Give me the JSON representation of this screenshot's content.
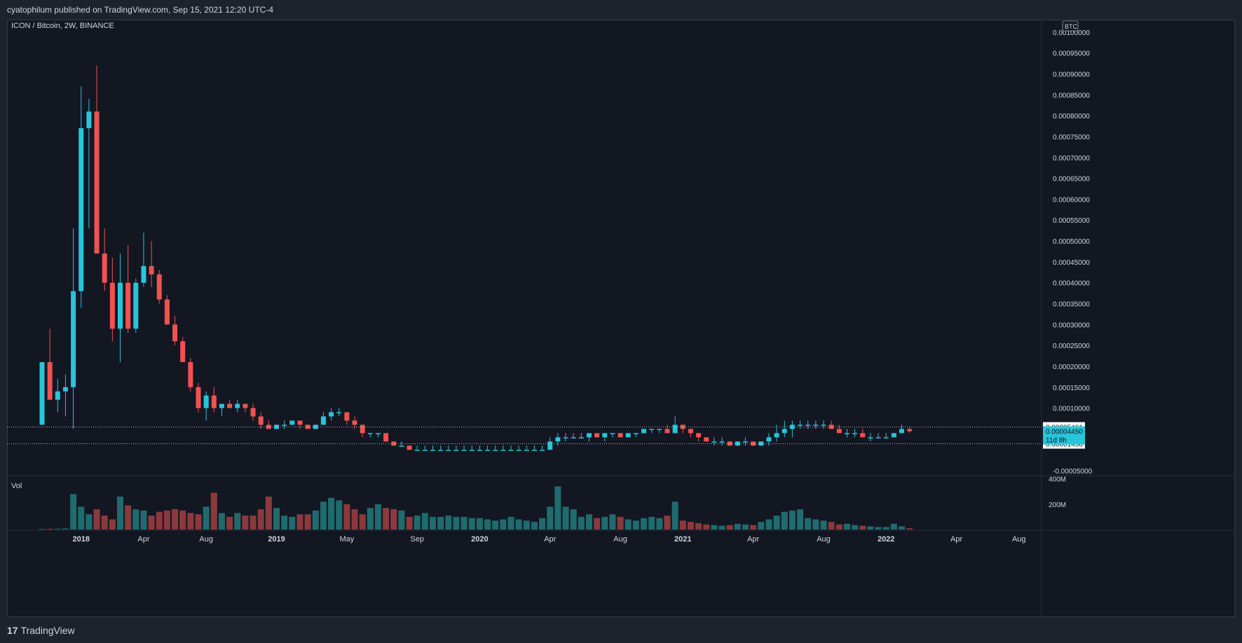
{
  "header": {
    "publisher_line": "cyatophilum published on TradingView.com, Sep 15, 2021 12:20 UTC-4"
  },
  "footer": {
    "brand": "TradingView",
    "logo_glyph": "17"
  },
  "colors": {
    "up": "#26c6da",
    "down": "#ef5350",
    "up_vol": "#1f6b6e",
    "down_vol": "#8a3a3d",
    "background": "#131722",
    "frame": "#1e222d",
    "text": "#d1d4dc"
  },
  "chart_data": {
    "type": "candlestick",
    "title": "ICON / Bitcoin, 2W, BINANCE",
    "symbol": "ICON / Bitcoin",
    "interval": "2W",
    "exchange": "BINANCE",
    "currency_badge": "BTC",
    "price_axis": {
      "ylim": [
        -6e-05,
        0.00103
      ],
      "tick_labels": [
        "0.00100000",
        "0.00095000",
        "0.00090000",
        "0.00085000",
        "0.00080000",
        "0.00075000",
        "0.00070000",
        "0.00065000",
        "0.00060000",
        "0.00055000",
        "0.00050000",
        "0.00045000",
        "0.00040000",
        "0.00035000",
        "0.00030000",
        "0.00025000",
        "0.00020000",
        "0.00015000",
        "0.00010000",
        "-0.00005000"
      ],
      "tick_values": [
        0.001,
        0.00095,
        0.0009,
        0.00085,
        0.0008,
        0.00075,
        0.0007,
        0.00065,
        0.0006,
        0.00055,
        0.0005,
        0.00045,
        0.0004,
        0.00035,
        0.0003,
        0.00025,
        0.0002,
        0.00015,
        0.0001,
        -5e-05
      ]
    },
    "volume_axis": {
      "ylim": [
        0,
        420000000
      ],
      "tick_labels": [
        "400M",
        "200M"
      ],
      "tick_values": [
        400000000,
        200000000
      ]
    },
    "volume_label": "Vol",
    "time_axis": {
      "labels": [
        "2018",
        "Apr",
        "Aug",
        "2019",
        "May",
        "Sep",
        "2020",
        "Apr",
        "Aug",
        "2021",
        "Apr",
        "Aug",
        "2022",
        "Apr",
        "Aug"
      ],
      "label_bar_index": [
        5,
        13,
        21,
        30,
        39,
        48,
        56,
        65,
        74,
        82,
        91,
        100,
        108,
        117,
        125
      ]
    },
    "price_lines": [
      {
        "label": "0.00005461",
        "value": 5.461e-05,
        "style": "dotted",
        "badge": "white"
      },
      {
        "label": "0.00001458",
        "value": 1.458e-05,
        "style": "dotted",
        "badge": "white"
      }
    ],
    "last_price": {
      "label": "0.00004450",
      "countdown": "11d 8h",
      "value": 4.45e-05
    },
    "candles": [
      [
        6e-05,
        0.00021,
        6e-05,
        0.00021,
        5000000
      ],
      [
        0.00021,
        0.00029,
        0.00012,
        0.00012,
        6000000
      ],
      [
        0.00012,
        0.00017,
        9e-05,
        0.00014,
        6000000
      ],
      [
        0.00014,
        0.00018,
        8e-05,
        0.00015,
        8000000
      ],
      [
        0.00015,
        0.00053,
        5e-05,
        0.00038,
        280000000
      ],
      [
        0.00038,
        0.00087,
        0.00034,
        0.00077,
        180000000
      ],
      [
        0.00077,
        0.00084,
        0.00053,
        0.00081,
        120000000
      ],
      [
        0.00081,
        0.00092,
        0.00047,
        0.00047,
        160000000
      ],
      [
        0.00047,
        0.00053,
        0.00038,
        0.0004,
        110000000
      ],
      [
        0.0004,
        0.00046,
        0.00026,
        0.00029,
        80000000
      ],
      [
        0.00029,
        0.00047,
        0.00021,
        0.0004,
        260000000
      ],
      [
        0.0004,
        0.00049,
        0.00028,
        0.00029,
        190000000
      ],
      [
        0.00029,
        0.00041,
        0.00028,
        0.0004,
        160000000
      ],
      [
        0.0004,
        0.00052,
        0.00039,
        0.00044,
        150000000
      ],
      [
        0.00044,
        0.0005,
        0.00039,
        0.00042,
        110000000
      ],
      [
        0.00042,
        0.00043,
        0.00035,
        0.00036,
        140000000
      ],
      [
        0.00036,
        0.00037,
        0.0003,
        0.0003,
        150000000
      ],
      [
        0.0003,
        0.00032,
        0.00025,
        0.00026,
        160000000
      ],
      [
        0.00026,
        0.00027,
        0.00021,
        0.00021,
        150000000
      ],
      [
        0.00021,
        0.00022,
        0.00014,
        0.00015,
        130000000
      ],
      [
        0.00015,
        0.00016,
        9e-05,
        0.0001,
        120000000
      ],
      [
        0.0001,
        0.00014,
        7e-05,
        0.00013,
        180000000
      ],
      [
        0.00013,
        0.00015,
        9e-05,
        0.0001,
        290000000
      ],
      [
        0.0001,
        0.00011,
        8e-05,
        0.00011,
        130000000
      ],
      [
        0.00011,
        0.00012,
        0.0001,
        0.0001,
        100000000
      ],
      [
        0.0001,
        0.00012,
        9e-05,
        0.00011,
        130000000
      ],
      [
        0.00011,
        0.00011,
        9e-05,
        0.0001,
        110000000
      ],
      [
        0.0001,
        0.00011,
        7e-05,
        8e-05,
        110000000
      ],
      [
        8e-05,
        9e-05,
        5e-05,
        6e-05,
        160000000
      ],
      [
        6e-05,
        7e-05,
        5e-05,
        5e-05,
        260000000
      ],
      [
        5e-05,
        6e-05,
        5e-05,
        6e-05,
        170000000
      ],
      [
        6e-05,
        7e-05,
        5e-05,
        6e-05,
        110000000
      ],
      [
        6e-05,
        7e-05,
        6e-05,
        7e-05,
        100000000
      ],
      [
        7e-05,
        7e-05,
        5e-05,
        6e-05,
        120000000
      ],
      [
        6e-05,
        6e-05,
        5e-05,
        5e-05,
        120000000
      ],
      [
        5e-05,
        6e-05,
        5e-05,
        6e-05,
        150000000
      ],
      [
        6e-05,
        9e-05,
        6e-05,
        8e-05,
        220000000
      ],
      [
        8e-05,
        0.0001,
        7e-05,
        9e-05,
        250000000
      ],
      [
        9e-05,
        0.0001,
        8e-05,
        9e-05,
        230000000
      ],
      [
        9e-05,
        9e-05,
        6e-05,
        7e-05,
        200000000
      ],
      [
        7e-05,
        8e-05,
        5e-05,
        6e-05,
        160000000
      ],
      [
        6e-05,
        6e-05,
        3e-05,
        4e-05,
        120000000
      ],
      [
        4e-05,
        4e-05,
        3e-05,
        4e-05,
        170000000
      ],
      [
        4e-05,
        4e-05,
        3e-05,
        4e-05,
        200000000
      ],
      [
        4e-05,
        4e-05,
        2e-05,
        2e-05,
        170000000
      ],
      [
        2e-05,
        2e-05,
        1e-05,
        1e-05,
        160000000
      ],
      [
        1e-05,
        2e-05,
        1e-05,
        1e-05,
        150000000
      ],
      [
        1e-05,
        1e-05,
        0,
        0.0,
        100000000
      ],
      [
        0.0,
        1e-05,
        0,
        0.0,
        110000000
      ],
      [
        0.0,
        1e-05,
        0,
        0.0,
        130000000
      ],
      [
        0.0,
        1e-05,
        0,
        0.0,
        100000000
      ],
      [
        0.0,
        1e-05,
        0,
        0.0,
        100000000
      ],
      [
        0.0,
        1e-05,
        0,
        0.0,
        110000000
      ],
      [
        0.0,
        1e-05,
        0,
        0.0,
        100000000
      ],
      [
        0.0,
        1e-05,
        0,
        0.0,
        100000000
      ],
      [
        0.0,
        1e-05,
        0,
        0.0,
        90000000
      ],
      [
        0.0,
        1e-05,
        0,
        0.0,
        90000000
      ],
      [
        0.0,
        1e-05,
        0,
        0.0,
        80000000
      ],
      [
        0.0,
        1e-05,
        0,
        0.0,
        70000000
      ],
      [
        0.0,
        1e-05,
        0,
        0.0,
        80000000
      ],
      [
        0.0,
        1e-05,
        0,
        0.0,
        100000000
      ],
      [
        0.0,
        1e-05,
        0,
        0.0,
        80000000
      ],
      [
        0.0,
        1e-05,
        0,
        0.0,
        70000000
      ],
      [
        0.0,
        1e-05,
        0,
        0.0,
        60000000
      ],
      [
        0.0,
        1e-05,
        0,
        0.0,
        90000000
      ],
      [
        0.0,
        3e-05,
        0,
        2e-05,
        180000000
      ],
      [
        2e-05,
        4e-05,
        1e-05,
        3e-05,
        340000000
      ],
      [
        3e-05,
        4e-05,
        2e-05,
        3e-05,
        180000000
      ],
      [
        3e-05,
        4e-05,
        3e-05,
        3e-05,
        160000000
      ],
      [
        3e-05,
        4e-05,
        3e-05,
        3e-05,
        100000000
      ],
      [
        3e-05,
        4e-05,
        2e-05,
        4e-05,
        120000000
      ],
      [
        4e-05,
        4e-05,
        3e-05,
        3e-05,
        90000000
      ],
      [
        3e-05,
        4e-05,
        2e-05,
        4e-05,
        100000000
      ],
      [
        4e-05,
        4e-05,
        3e-05,
        4e-05,
        120000000
      ],
      [
        4e-05,
        4e-05,
        3e-05,
        3e-05,
        100000000
      ],
      [
        3e-05,
        4e-05,
        3e-05,
        4e-05,
        80000000
      ],
      [
        4e-05,
        4e-05,
        3e-05,
        4e-05,
        70000000
      ],
      [
        4e-05,
        5e-05,
        4e-05,
        5e-05,
        90000000
      ],
      [
        5e-05,
        5e-05,
        4e-05,
        5e-05,
        100000000
      ],
      [
        5e-05,
        5e-05,
        4e-05,
        5e-05,
        90000000
      ],
      [
        5e-05,
        6e-05,
        4e-05,
        4e-05,
        110000000
      ],
      [
        4e-05,
        8e-05,
        4e-05,
        6e-05,
        220000000
      ],
      [
        6e-05,
        6e-05,
        4e-05,
        5e-05,
        70000000
      ],
      [
        5e-05,
        5e-05,
        3e-05,
        4e-05,
        60000000
      ],
      [
        4e-05,
        4e-05,
        2e-05,
        3e-05,
        50000000
      ],
      [
        3e-05,
        3e-05,
        2e-05,
        2e-05,
        40000000
      ],
      [
        2e-05,
        3e-05,
        1e-05,
        2e-05,
        35000000
      ],
      [
        2e-05,
        3e-05,
        1e-05,
        2e-05,
        30000000
      ],
      [
        2e-05,
        2e-05,
        1e-05,
        1e-05,
        35000000
      ],
      [
        1e-05,
        2e-05,
        1e-05,
        2e-05,
        45000000
      ],
      [
        2e-05,
        3e-05,
        1e-05,
        2e-05,
        40000000
      ],
      [
        2e-05,
        2e-05,
        1e-05,
        1e-05,
        35000000
      ],
      [
        1e-05,
        2e-05,
        1e-05,
        2e-05,
        60000000
      ],
      [
        2e-05,
        4e-05,
        1e-05,
        3e-05,
        80000000
      ],
      [
        3e-05,
        6e-05,
        2e-05,
        4e-05,
        110000000
      ],
      [
        4e-05,
        7e-05,
        3e-05,
        5e-05,
        140000000
      ],
      [
        5e-05,
        7e-05,
        3e-05,
        6e-05,
        150000000
      ],
      [
        6e-05,
        7e-05,
        5e-05,
        6e-05,
        160000000
      ],
      [
        6e-05,
        7e-05,
        5e-05,
        6e-05,
        90000000
      ],
      [
        6e-05,
        7e-05,
        5e-05,
        6e-05,
        80000000
      ],
      [
        6e-05,
        7e-05,
        5e-05,
        6e-05,
        70000000
      ],
      [
        6e-05,
        7e-05,
        5e-05,
        5e-05,
        60000000
      ],
      [
        5e-05,
        6e-05,
        4e-05,
        4e-05,
        40000000
      ],
      [
        4e-05,
        5e-05,
        3e-05,
        4e-05,
        45000000
      ],
      [
        4e-05,
        5e-05,
        3e-05,
        4e-05,
        35000000
      ],
      [
        4e-05,
        5e-05,
        3e-05,
        3e-05,
        30000000
      ],
      [
        3e-05,
        4e-05,
        2e-05,
        3e-05,
        25000000
      ],
      [
        3e-05,
        4e-05,
        3e-05,
        3e-05,
        20000000
      ],
      [
        3e-05,
        4e-05,
        3e-05,
        3e-05,
        20000000
      ],
      [
        3e-05,
        4e-05,
        3e-05,
        4e-05,
        45000000
      ],
      [
        4e-05,
        6e-05,
        4e-05,
        5e-05,
        25000000
      ],
      [
        5e-05,
        5.5e-05,
        4e-05,
        4.45e-05,
        10000000
      ]
    ]
  }
}
